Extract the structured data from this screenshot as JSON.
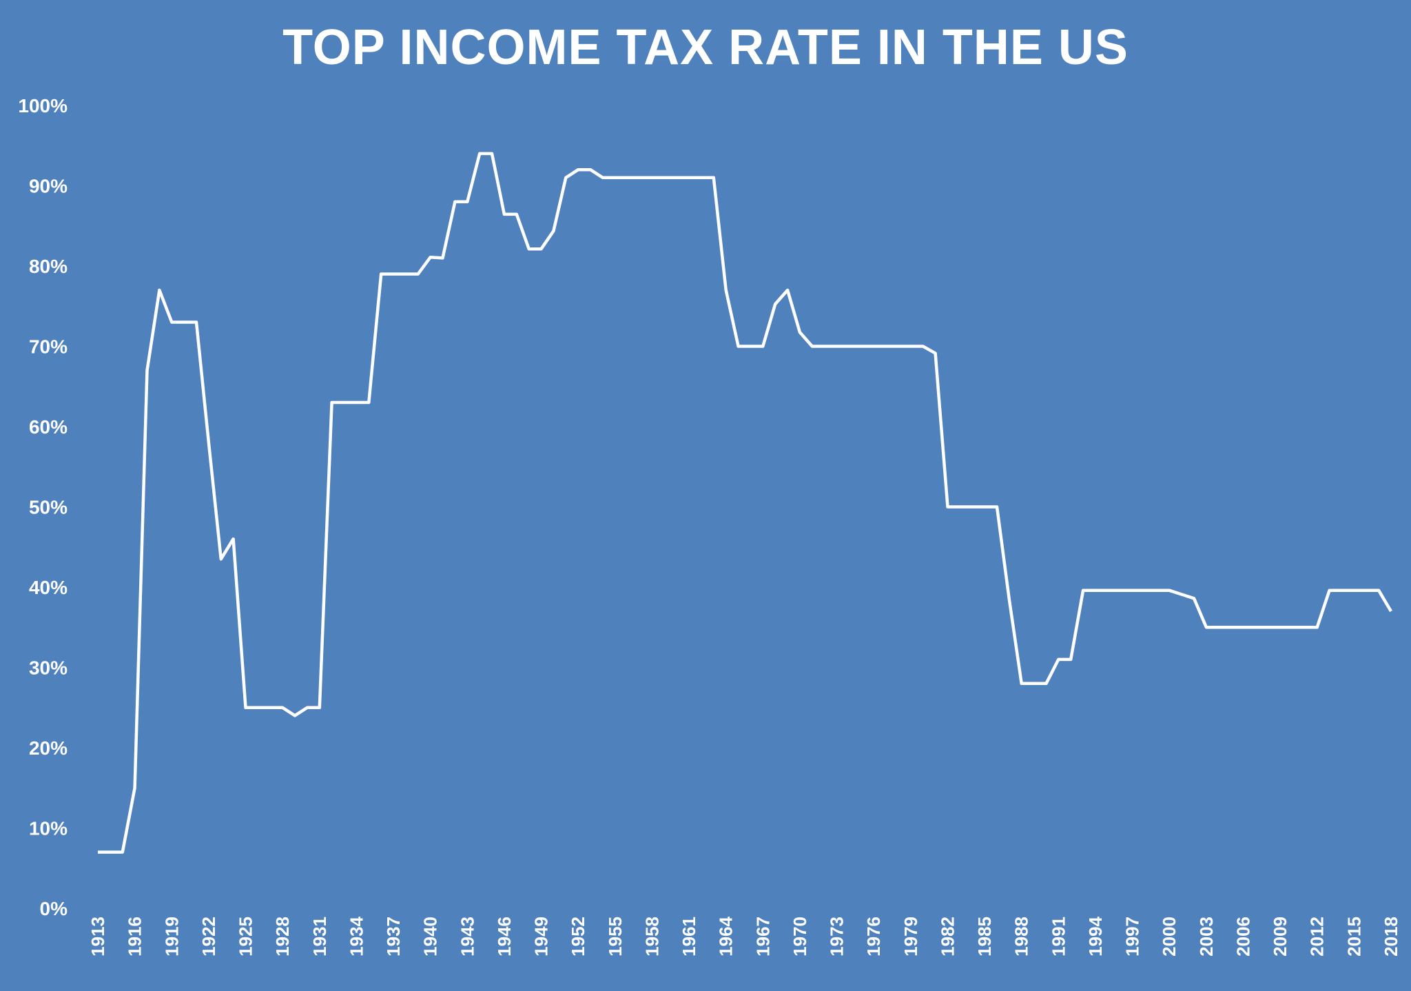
{
  "chart_data": {
    "type": "area",
    "title": "TOP INCOME TAX RATE IN THE US",
    "xlabel": "",
    "ylabel": "",
    "ylim": [
      0,
      100
    ],
    "y_ticks": [
      "0%",
      "10%",
      "20%",
      "30%",
      "40%",
      "50%",
      "60%",
      "70%",
      "80%",
      "90%",
      "100%"
    ],
    "x_tick_labels": [
      "1913",
      "1916",
      "1919",
      "1922",
      "1925",
      "1928",
      "1931",
      "1934",
      "1937",
      "1940",
      "1943",
      "1946",
      "1949",
      "1952",
      "1955",
      "1958",
      "1961",
      "1964",
      "1967",
      "1970",
      "1973",
      "1976",
      "1979",
      "1982",
      "1985",
      "1988",
      "1991",
      "1994",
      "1997",
      "2000",
      "2003",
      "2006",
      "2009",
      "2012",
      "2015",
      "2018"
    ],
    "grid": false,
    "legend": "none",
    "colors": {
      "background": "#4f81bd",
      "line": "#ffffff",
      "fill": "#ffffff"
    },
    "x": [
      1913,
      1914,
      1915,
      1916,
      1917,
      1918,
      1919,
      1920,
      1921,
      1922,
      1923,
      1924,
      1925,
      1926,
      1927,
      1928,
      1929,
      1930,
      1931,
      1932,
      1933,
      1934,
      1935,
      1936,
      1937,
      1938,
      1939,
      1940,
      1941,
      1942,
      1943,
      1944,
      1945,
      1946,
      1947,
      1948,
      1949,
      1950,
      1951,
      1952,
      1953,
      1954,
      1955,
      1956,
      1957,
      1958,
      1959,
      1960,
      1961,
      1962,
      1963,
      1964,
      1965,
      1966,
      1967,
      1968,
      1969,
      1970,
      1971,
      1972,
      1973,
      1974,
      1975,
      1976,
      1977,
      1978,
      1979,
      1980,
      1981,
      1982,
      1983,
      1984,
      1985,
      1986,
      1987,
      1988,
      1989,
      1990,
      1991,
      1992,
      1993,
      1994,
      1995,
      1996,
      1997,
      1998,
      1999,
      2000,
      2001,
      2002,
      2003,
      2004,
      2005,
      2006,
      2007,
      2008,
      2009,
      2010,
      2011,
      2012,
      2013,
      2014,
      2015,
      2016,
      2017,
      2018
    ],
    "series": [
      {
        "values": [
          7,
          7,
          7,
          15,
          67,
          77,
          73,
          73,
          73,
          58,
          43.5,
          46,
          25,
          25,
          25,
          25,
          24,
          25,
          25,
          63,
          63,
          63,
          63,
          79,
          79,
          79,
          79,
          81.1,
          81,
          88,
          88,
          94,
          94,
          86.45,
          86.45,
          82.13,
          82.13,
          84.36,
          91,
          92,
          92,
          91,
          91,
          91,
          91,
          91,
          91,
          91,
          91,
          91,
          91,
          77,
          70,
          70,
          70,
          75.25,
          77,
          71.75,
          70,
          70,
          70,
          70,
          70,
          70,
          70,
          70,
          70,
          70,
          69.13,
          50,
          50,
          50,
          50,
          50,
          38.5,
          28,
          28,
          28,
          31,
          31,
          39.6,
          39.6,
          39.6,
          39.6,
          39.6,
          39.6,
          39.6,
          39.6,
          39.1,
          38.6,
          35,
          35,
          35,
          35,
          35,
          35,
          35,
          35,
          35,
          35,
          39.6,
          39.6,
          39.6,
          39.6,
          39.6,
          37
        ]
      }
    ]
  }
}
